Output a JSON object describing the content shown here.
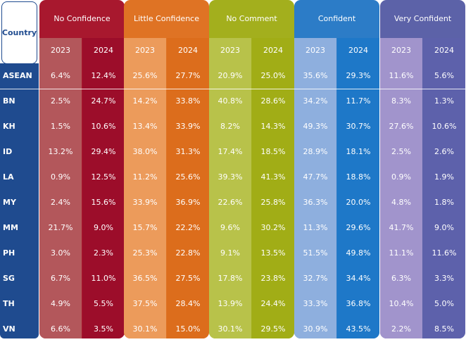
{
  "chart_data": {
    "type": "table",
    "title": "",
    "row_header": "Country",
    "years": [
      "2023",
      "2024"
    ],
    "categories": [
      {
        "name": "No Confidence",
        "header_color": "#a8182e",
        "col_colors": [
          "#b3575b",
          "#9c0d2a"
        ]
      },
      {
        "name": "Little Confidence",
        "header_color": "#df7324",
        "col_colors": [
          "#ec9b5b",
          "#dc6d1c"
        ]
      },
      {
        "name": "No Comment",
        "header_color": "#a3af1d",
        "col_colors": [
          "#b8c24a",
          "#a1ad16"
        ]
      },
      {
        "name": "Confident",
        "header_color": "#2c7cc7",
        "col_colors": [
          "#8eafde",
          "#1e78c8"
        ]
      },
      {
        "name": "Very Confident",
        "header_color": "#5c62a8",
        "col_colors": [
          "#a194cc",
          "#5d61ab"
        ]
      }
    ],
    "rows": [
      {
        "country": "ASEAN",
        "values": [
          "6.4%",
          "12.4%",
          "25.6%",
          "27.7%",
          "20.9%",
          "25.0%",
          "35.6%",
          "29.3%",
          "11.6%",
          "5.6%"
        ]
      },
      {
        "country": "BN",
        "values": [
          "2.5%",
          "24.7%",
          "14.2%",
          "33.8%",
          "40.8%",
          "28.6%",
          "34.2%",
          "11.7%",
          "8.3%",
          "1.3%"
        ]
      },
      {
        "country": "KH",
        "values": [
          "1.5%",
          "10.6%",
          "13.4%",
          "33.9%",
          "8.2%",
          "14.3%",
          "49.3%",
          "30.7%",
          "27.6%",
          "10.6%"
        ]
      },
      {
        "country": "ID",
        "values": [
          "13.2%",
          "29.4%",
          "38.0%",
          "31.3%",
          "17.4%",
          "18.5%",
          "28.9%",
          "18.1%",
          "2.5%",
          "2.6%"
        ]
      },
      {
        "country": "LA",
        "values": [
          "0.9%",
          "12.5%",
          "11.2%",
          "25.6%",
          "39.3%",
          "41.3%",
          "47.7%",
          "18.8%",
          "0.9%",
          "1.9%"
        ]
      },
      {
        "country": "MY",
        "values": [
          "2.4%",
          "15.6%",
          "33.9%",
          "36.9%",
          "22.6%",
          "25.8%",
          "36.3%",
          "20.0%",
          "4.8%",
          "1.8%"
        ]
      },
      {
        "country": "MM",
        "values": [
          "21.7%",
          "9.0%",
          "15.7%",
          "22.2%",
          "9.6%",
          "30.2%",
          "11.3%",
          "29.6%",
          "41.7%",
          "9.0%"
        ]
      },
      {
        "country": "PH",
        "values": [
          "3.0%",
          "2.3%",
          "25.3%",
          "22.8%",
          "9.1%",
          "13.5%",
          "51.5%",
          "49.8%",
          "11.1%",
          "11.6%"
        ]
      },
      {
        "country": "SG",
        "values": [
          "6.7%",
          "11.0%",
          "36.5%",
          "27.5%",
          "17.8%",
          "23.8%",
          "32.7%",
          "34.4%",
          "6.3%",
          "3.3%"
        ]
      },
      {
        "country": "TH",
        "values": [
          "4.9%",
          "5.5%",
          "37.5%",
          "28.4%",
          "13.9%",
          "24.4%",
          "33.3%",
          "36.8%",
          "10.4%",
          "5.0%"
        ]
      },
      {
        "country": "VN",
        "values": [
          "6.6%",
          "3.5%",
          "30.1%",
          "15.0%",
          "30.1%",
          "29.5%",
          "30.9%",
          "43.5%",
          "2.2%",
          "8.5%"
        ]
      }
    ]
  }
}
